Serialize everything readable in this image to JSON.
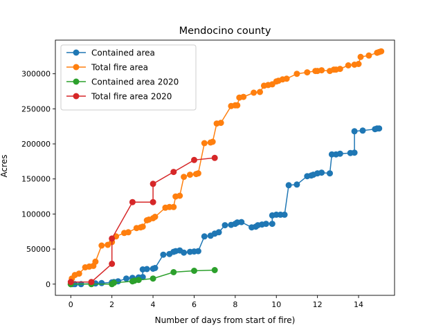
{
  "chart_data": {
    "type": "line",
    "title": "Mendocino county",
    "xlabel": "Number of days from start of fire)",
    "ylabel": "Acres",
    "xlim": [
      -0.75,
      15.75
    ],
    "ylim": [
      -16000,
      348000
    ],
    "xticks": [
      0,
      2,
      4,
      6,
      8,
      10,
      12,
      14
    ],
    "yticks": [
      0,
      50000,
      100000,
      150000,
      200000,
      250000,
      300000
    ],
    "grid": false,
    "legend_position": "top-left",
    "series": [
      {
        "name": "Contained area",
        "color": "#1f77b4",
        "points": [
          [
            0,
            0
          ],
          [
            0.1,
            0
          ],
          [
            0.2,
            0
          ],
          [
            0.5,
            0
          ],
          [
            1.0,
            800
          ],
          [
            1.2,
            1000
          ],
          [
            1.5,
            1500
          ],
          [
            2.0,
            2500
          ],
          [
            2.1,
            3000
          ],
          [
            2.3,
            4000
          ],
          [
            2.7,
            8000
          ],
          [
            3.0,
            9000
          ],
          [
            3.3,
            9500
          ],
          [
            3.5,
            10000
          ],
          [
            3.5,
            21000
          ],
          [
            3.7,
            21500
          ],
          [
            4.0,
            22000
          ],
          [
            4.1,
            23000
          ],
          [
            4.5,
            42000
          ],
          [
            4.8,
            43000
          ],
          [
            5.0,
            46000
          ],
          [
            5.1,
            47000
          ],
          [
            5.3,
            48000
          ],
          [
            5.5,
            45000
          ],
          [
            5.8,
            46000
          ],
          [
            6.0,
            46500
          ],
          [
            6.2,
            47000
          ],
          [
            6.5,
            68000
          ],
          [
            6.8,
            69000
          ],
          [
            7.0,
            72000
          ],
          [
            7.2,
            74000
          ],
          [
            7.5,
            84000
          ],
          [
            7.8,
            84500
          ],
          [
            8.0,
            86000
          ],
          [
            8.1,
            88000
          ],
          [
            8.3,
            88500
          ],
          [
            8.8,
            81000
          ],
          [
            9.0,
            82000
          ],
          [
            9.1,
            84000
          ],
          [
            9.3,
            85000
          ],
          [
            9.5,
            86000
          ],
          [
            9.8,
            86000
          ],
          [
            9.8,
            98000
          ],
          [
            10.0,
            99000
          ],
          [
            10.2,
            99000
          ],
          [
            10.4,
            99000
          ],
          [
            10.6,
            141000
          ],
          [
            11.0,
            142000
          ],
          [
            11.5,
            154000
          ],
          [
            11.7,
            155000
          ],
          [
            11.8,
            156000
          ],
          [
            12.0,
            158000
          ],
          [
            12.2,
            159000
          ],
          [
            12.6,
            158000
          ],
          [
            12.7,
            185000
          ],
          [
            12.9,
            185000
          ],
          [
            13.1,
            186000
          ],
          [
            13.6,
            187000
          ],
          [
            13.8,
            187500
          ],
          [
            13.8,
            218000
          ],
          [
            14.2,
            219000
          ],
          [
            14.8,
            221000
          ],
          [
            14.9,
            222000
          ],
          [
            15.0,
            222000
          ]
        ]
      },
      {
        "name": "Total fire area",
        "color": "#ff7f0e",
        "points": [
          [
            0,
            0
          ],
          [
            0.05,
            8000
          ],
          [
            0.2,
            13000
          ],
          [
            0.4,
            15000
          ],
          [
            0.7,
            24000
          ],
          [
            0.9,
            25000
          ],
          [
            1.1,
            26000
          ],
          [
            1.2,
            32000
          ],
          [
            1.5,
            55000
          ],
          [
            1.8,
            56000
          ],
          [
            2.0,
            60000
          ],
          [
            2.2,
            68000
          ],
          [
            2.6,
            73000
          ],
          [
            2.8,
            74000
          ],
          [
            3.2,
            80000
          ],
          [
            3.4,
            81000
          ],
          [
            3.5,
            82000
          ],
          [
            3.7,
            91000
          ],
          [
            3.8,
            92000
          ],
          [
            4.0,
            94000
          ],
          [
            4.1,
            96000
          ],
          [
            4.6,
            109000
          ],
          [
            4.8,
            110000
          ],
          [
            5.0,
            110000
          ],
          [
            5.1,
            125000
          ],
          [
            5.3,
            126000
          ],
          [
            5.5,
            153000
          ],
          [
            5.8,
            156000
          ],
          [
            6.1,
            157000
          ],
          [
            6.2,
            158000
          ],
          [
            6.5,
            201000
          ],
          [
            6.8,
            202000
          ],
          [
            6.9,
            203000
          ],
          [
            7.1,
            229000
          ],
          [
            7.3,
            230000
          ],
          [
            7.8,
            254000
          ],
          [
            8.0,
            255000
          ],
          [
            8.1,
            255000
          ],
          [
            8.2,
            266000
          ],
          [
            8.4,
            267000
          ],
          [
            8.9,
            273000
          ],
          [
            9.2,
            274000
          ],
          [
            9.4,
            283000
          ],
          [
            9.6,
            284000
          ],
          [
            9.8,
            285000
          ],
          [
            10.0,
            289000
          ],
          [
            10.1,
            290000
          ],
          [
            10.3,
            292000
          ],
          [
            10.5,
            293000
          ],
          [
            11.0,
            300000
          ],
          [
            11.5,
            302000
          ],
          [
            11.9,
            304000
          ],
          [
            12.0,
            304000
          ],
          [
            12.2,
            305000
          ],
          [
            12.6,
            304000
          ],
          [
            12.8,
            306000
          ],
          [
            12.9,
            306000
          ],
          [
            13.1,
            307000
          ],
          [
            13.5,
            312000
          ],
          [
            13.8,
            313000
          ],
          [
            14.0,
            314000
          ],
          [
            14.1,
            324000
          ],
          [
            14.5,
            326000
          ],
          [
            14.9,
            330000
          ],
          [
            15.0,
            331000
          ],
          [
            15.1,
            332000
          ]
        ]
      },
      {
        "name": "Contained area 2020",
        "color": "#2ca02c",
        "points": [
          [
            0,
            0
          ],
          [
            1,
            0
          ],
          [
            2,
            0
          ],
          [
            2.1,
            2000
          ],
          [
            3,
            4000
          ],
          [
            3.1,
            5000
          ],
          [
            3.3,
            6000
          ],
          [
            4,
            8000
          ],
          [
            5,
            17000
          ],
          [
            6,
            19000
          ],
          [
            7,
            20000
          ]
        ]
      },
      {
        "name": "Total fire area 2020",
        "color": "#d62728",
        "points": [
          [
            0,
            3000
          ],
          [
            1,
            3000
          ],
          [
            2,
            29000
          ],
          [
            2,
            65000
          ],
          [
            3,
            117000
          ],
          [
            4,
            117000
          ],
          [
            4,
            143000
          ],
          [
            5,
            160000
          ],
          [
            6,
            177000
          ],
          [
            7,
            180000
          ]
        ]
      }
    ]
  }
}
